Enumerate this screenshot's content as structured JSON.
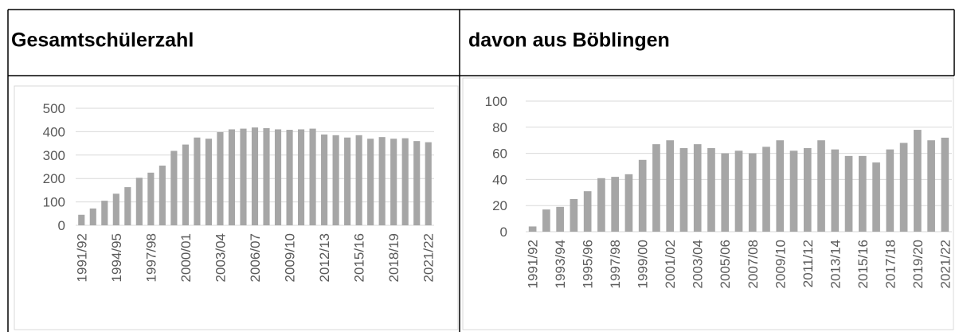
{
  "chart_data": [
    {
      "type": "bar",
      "title": "Gesamtschülerzahl",
      "color": "#a6a6a6",
      "grid": true,
      "categories": [
        "1991/92",
        null,
        null,
        "1994/95",
        null,
        null,
        "1997/98",
        null,
        null,
        "2000/01",
        null,
        null,
        "2003/04",
        null,
        null,
        "2006/07",
        null,
        null,
        "2009/10",
        null,
        null,
        "2012/13",
        null,
        null,
        "2015/16",
        null,
        null,
        "2018/19",
        null,
        null,
        "2021/22"
      ],
      "values": [
        45,
        72,
        105,
        135,
        163,
        203,
        225,
        255,
        318,
        345,
        375,
        370,
        398,
        410,
        413,
        418,
        415,
        410,
        408,
        410,
        413,
        388,
        385,
        375,
        385,
        370,
        377,
        370,
        372,
        360,
        355
      ],
      "ylim": [
        0,
        500
      ],
      "yticks": [
        0,
        100,
        200,
        300,
        400,
        500
      ]
    },
    {
      "type": "bar",
      "title": "davon aus Böblingen",
      "color": "#a6a6a6",
      "grid": true,
      "categories": [
        "1991/92",
        null,
        "1993/94",
        null,
        "1995/96",
        null,
        "1997/98",
        null,
        "1999/00",
        null,
        "2001/02",
        null,
        "2003/04",
        null,
        "2005/06",
        null,
        "2007/08",
        null,
        "2009/10",
        null,
        "2011/12",
        null,
        "2013/14",
        null,
        "2015/16",
        null,
        "2017/18",
        null,
        "2019/20",
        null,
        "2021/22"
      ],
      "values": [
        4,
        17,
        19,
        25,
        31,
        41,
        42,
        44,
        55,
        67,
        70,
        64,
        67,
        64,
        60,
        62,
        60,
        65,
        70,
        62,
        64,
        70,
        63,
        58,
        58,
        53,
        63,
        68,
        78,
        70,
        72
      ],
      "ylim": [
        0,
        100
      ],
      "yticks": [
        0,
        20,
        40,
        60,
        80,
        100
      ]
    }
  ]
}
